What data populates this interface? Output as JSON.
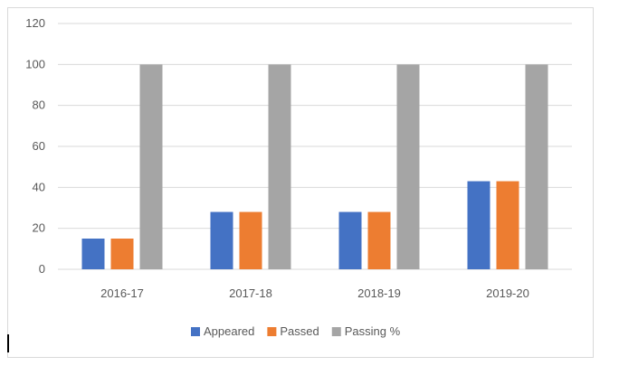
{
  "chart_data": {
    "type": "bar",
    "title": "",
    "xlabel": "",
    "ylabel": "",
    "categories": [
      "2016-17",
      "2017-18",
      "2018-19",
      "2019-20"
    ],
    "series": [
      {
        "name": "Appeared",
        "color": "#4472c4",
        "values": [
          15,
          28,
          28,
          43
        ]
      },
      {
        "name": "Passed",
        "color": "#ed7d31",
        "values": [
          15,
          28,
          28,
          43
        ]
      },
      {
        "name": "Passing %",
        "color": "#a5a5a5",
        "values": [
          100,
          100,
          100,
          100
        ]
      }
    ],
    "ylim": [
      0,
      120
    ],
    "yticks": [
      "0",
      "20",
      "40",
      "60",
      "80",
      "100",
      "120"
    ],
    "grid": true,
    "legend_position": "bottom"
  }
}
